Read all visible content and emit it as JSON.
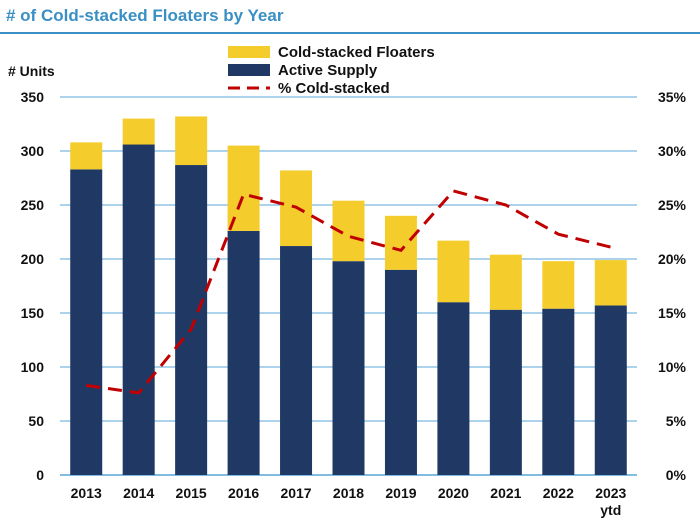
{
  "chart_data": {
    "type": "bar",
    "title": "# of Cold-stacked Floaters by Year",
    "ylabel": "# Units",
    "categories": [
      "2013",
      "2014",
      "2015",
      "2016",
      "2017",
      "2018",
      "2019",
      "2020",
      "2021",
      "2022",
      "2023 ytd"
    ],
    "category_lines": [
      [
        "2013"
      ],
      [
        "2014"
      ],
      [
        "2015"
      ],
      [
        "2016"
      ],
      [
        "2017"
      ],
      [
        "2018"
      ],
      [
        "2019"
      ],
      [
        "2020"
      ],
      [
        "2021"
      ],
      [
        "2022"
      ],
      [
        "2023",
        "ytd"
      ]
    ],
    "series": [
      {
        "name": "Active Supply",
        "values": [
          283,
          306,
          287,
          226,
          212,
          198,
          190,
          160,
          153,
          154,
          157
        ],
        "color": "#1f3864",
        "kind": "stacked-bar"
      },
      {
        "name": "Cold-stacked Floaters",
        "values": [
          25,
          24,
          45,
          79,
          70,
          56,
          50,
          57,
          51,
          44,
          42
        ],
        "color": "#f4cd2c",
        "kind": "stacked-bar"
      },
      {
        "name": "% Cold-stacked",
        "values": [
          8.3,
          7.6,
          13.5,
          26.0,
          24.8,
          22.1,
          20.8,
          26.3,
          25.0,
          22.3,
          21.1
        ],
        "color": "#c00000",
        "kind": "dashed-line",
        "axis": "secondary"
      }
    ],
    "ylim": [
      0,
      350
    ],
    "y_ticks": [
      "0",
      "50",
      "100",
      "150",
      "200",
      "250",
      "300",
      "350"
    ],
    "y2lim": [
      0,
      35
    ],
    "y2_ticks": [
      "0%",
      "5%",
      "10%",
      "15%",
      "20%",
      "25%",
      "30%",
      "35%"
    ],
    "legend": {
      "position": "top-center",
      "items": [
        {
          "label": "Cold-stacked Floaters",
          "color": "#f4cd2c",
          "kind": "box"
        },
        {
          "label": "Active Supply",
          "color": "#1f3864",
          "kind": "box"
        },
        {
          "label": "% Cold-stacked",
          "color": "#c00000",
          "kind": "dash"
        }
      ]
    },
    "grid": true,
    "colors": {
      "title": "#3a8fc4",
      "grid": "#5aa6d8"
    }
  }
}
